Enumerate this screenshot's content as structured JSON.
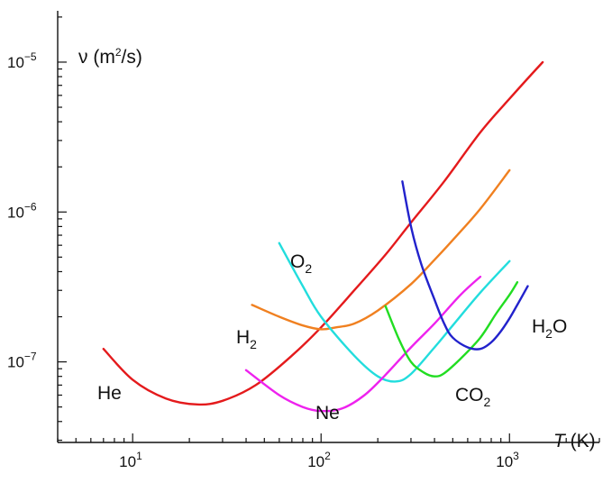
{
  "chart_data": {
    "type": "line",
    "title": "",
    "ylabel": {
      "text": "ν (m",
      "sup": "2",
      "tail": "/s)"
    },
    "xlabel": {
      "var": "T",
      "unit": " (K)"
    },
    "xscale": "log",
    "yscale": "log",
    "xlim": [
      4,
      3000
    ],
    "ylim": [
      2.9e-08,
      2.2e-05
    ],
    "x_ticks": [
      {
        "base": "10",
        "exp": "1"
      },
      {
        "base": "10",
        "exp": "2"
      },
      {
        "base": "10",
        "exp": "3"
      }
    ],
    "y_ticks": [
      {
        "base": "10",
        "exp": "−5"
      },
      {
        "base": "10",
        "exp": "−6"
      },
      {
        "base": "10",
        "exp": "−7"
      }
    ],
    "series": [
      {
        "name": "He",
        "label_main": "He",
        "label_sub": "",
        "color": "#e41a1c",
        "x": [
          7,
          10,
          15,
          22,
          30,
          45,
          70,
          100,
          150,
          220,
          300,
          450,
          700,
          1000,
          1500
        ],
        "y": [
          1.22e-07,
          7.6e-08,
          5.7e-08,
          5.2e-08,
          5.5e-08,
          7e-08,
          1.1e-07,
          1.7e-07,
          3e-07,
          5.2e-07,
          8.5e-07,
          1.6e-06,
          3.4e-06,
          5.7e-06,
          1e-05
        ]
      },
      {
        "name": "H2",
        "label_main": "H",
        "label_sub": "2",
        "color": "#f08020",
        "x": [
          43,
          60,
          80,
          100,
          120,
          150,
          200,
          300,
          400,
          500,
          700,
          1000
        ],
        "y": [
          2.4e-07,
          2e-07,
          1.75e-07,
          1.65e-07,
          1.7e-07,
          1.8e-07,
          2.2e-07,
          3.3e-07,
          4.8e-07,
          6.5e-07,
          1.05e-06,
          1.9e-06
        ]
      },
      {
        "name": "O2",
        "label_main": "O",
        "label_sub": "2",
        "color": "#22dddd",
        "x": [
          60,
          80,
          100,
          150,
          200,
          250,
          300,
          400,
          500,
          700,
          1000
        ],
        "y": [
          6.2e-07,
          3.2e-07,
          2e-07,
          1.1e-07,
          8e-08,
          7.4e-08,
          8.3e-08,
          1.25e-07,
          1.75e-07,
          2.9e-07,
          4.7e-07
        ]
      },
      {
        "name": "Ne",
        "label_main": "Ne",
        "label_sub": "",
        "color": "#ee22ee",
        "x": [
          40,
          60,
          80,
          100,
          130,
          170,
          220,
          300,
          400,
          550,
          700
        ],
        "y": [
          8.8e-08,
          6e-08,
          5e-08,
          4.7e-08,
          4.9e-08,
          6e-08,
          8.2e-08,
          1.25e-07,
          1.8e-07,
          2.8e-07,
          3.7e-07
        ]
      },
      {
        "name": "CO2",
        "label_main": "CO",
        "label_sub": "2",
        "color": "#22dd22",
        "x": [
          220,
          260,
          300,
          350,
          400,
          450,
          550,
          700,
          850,
          1000,
          1100
        ],
        "y": [
          2.35e-07,
          1.4e-07,
          1e-07,
          8.5e-08,
          8e-08,
          8.4e-08,
          1.05e-07,
          1.45e-07,
          2.1e-07,
          2.8e-07,
          3.4e-07
        ]
      },
      {
        "name": "H2O",
        "label_main": "H",
        "label_sub": "2",
        "label_tail": "O",
        "color": "#2222cc",
        "x": [
          270,
          300,
          340,
          400,
          450,
          500,
          600,
          700,
          800,
          900,
          1000,
          1100,
          1250
        ],
        "y": [
          1.6e-06,
          8e-07,
          4.5e-07,
          2.6e-07,
          1.8e-07,
          1.45e-07,
          1.25e-07,
          1.22e-07,
          1.35e-07,
          1.6e-07,
          1.95e-07,
          2.4e-07,
          3.2e-07
        ]
      }
    ]
  }
}
